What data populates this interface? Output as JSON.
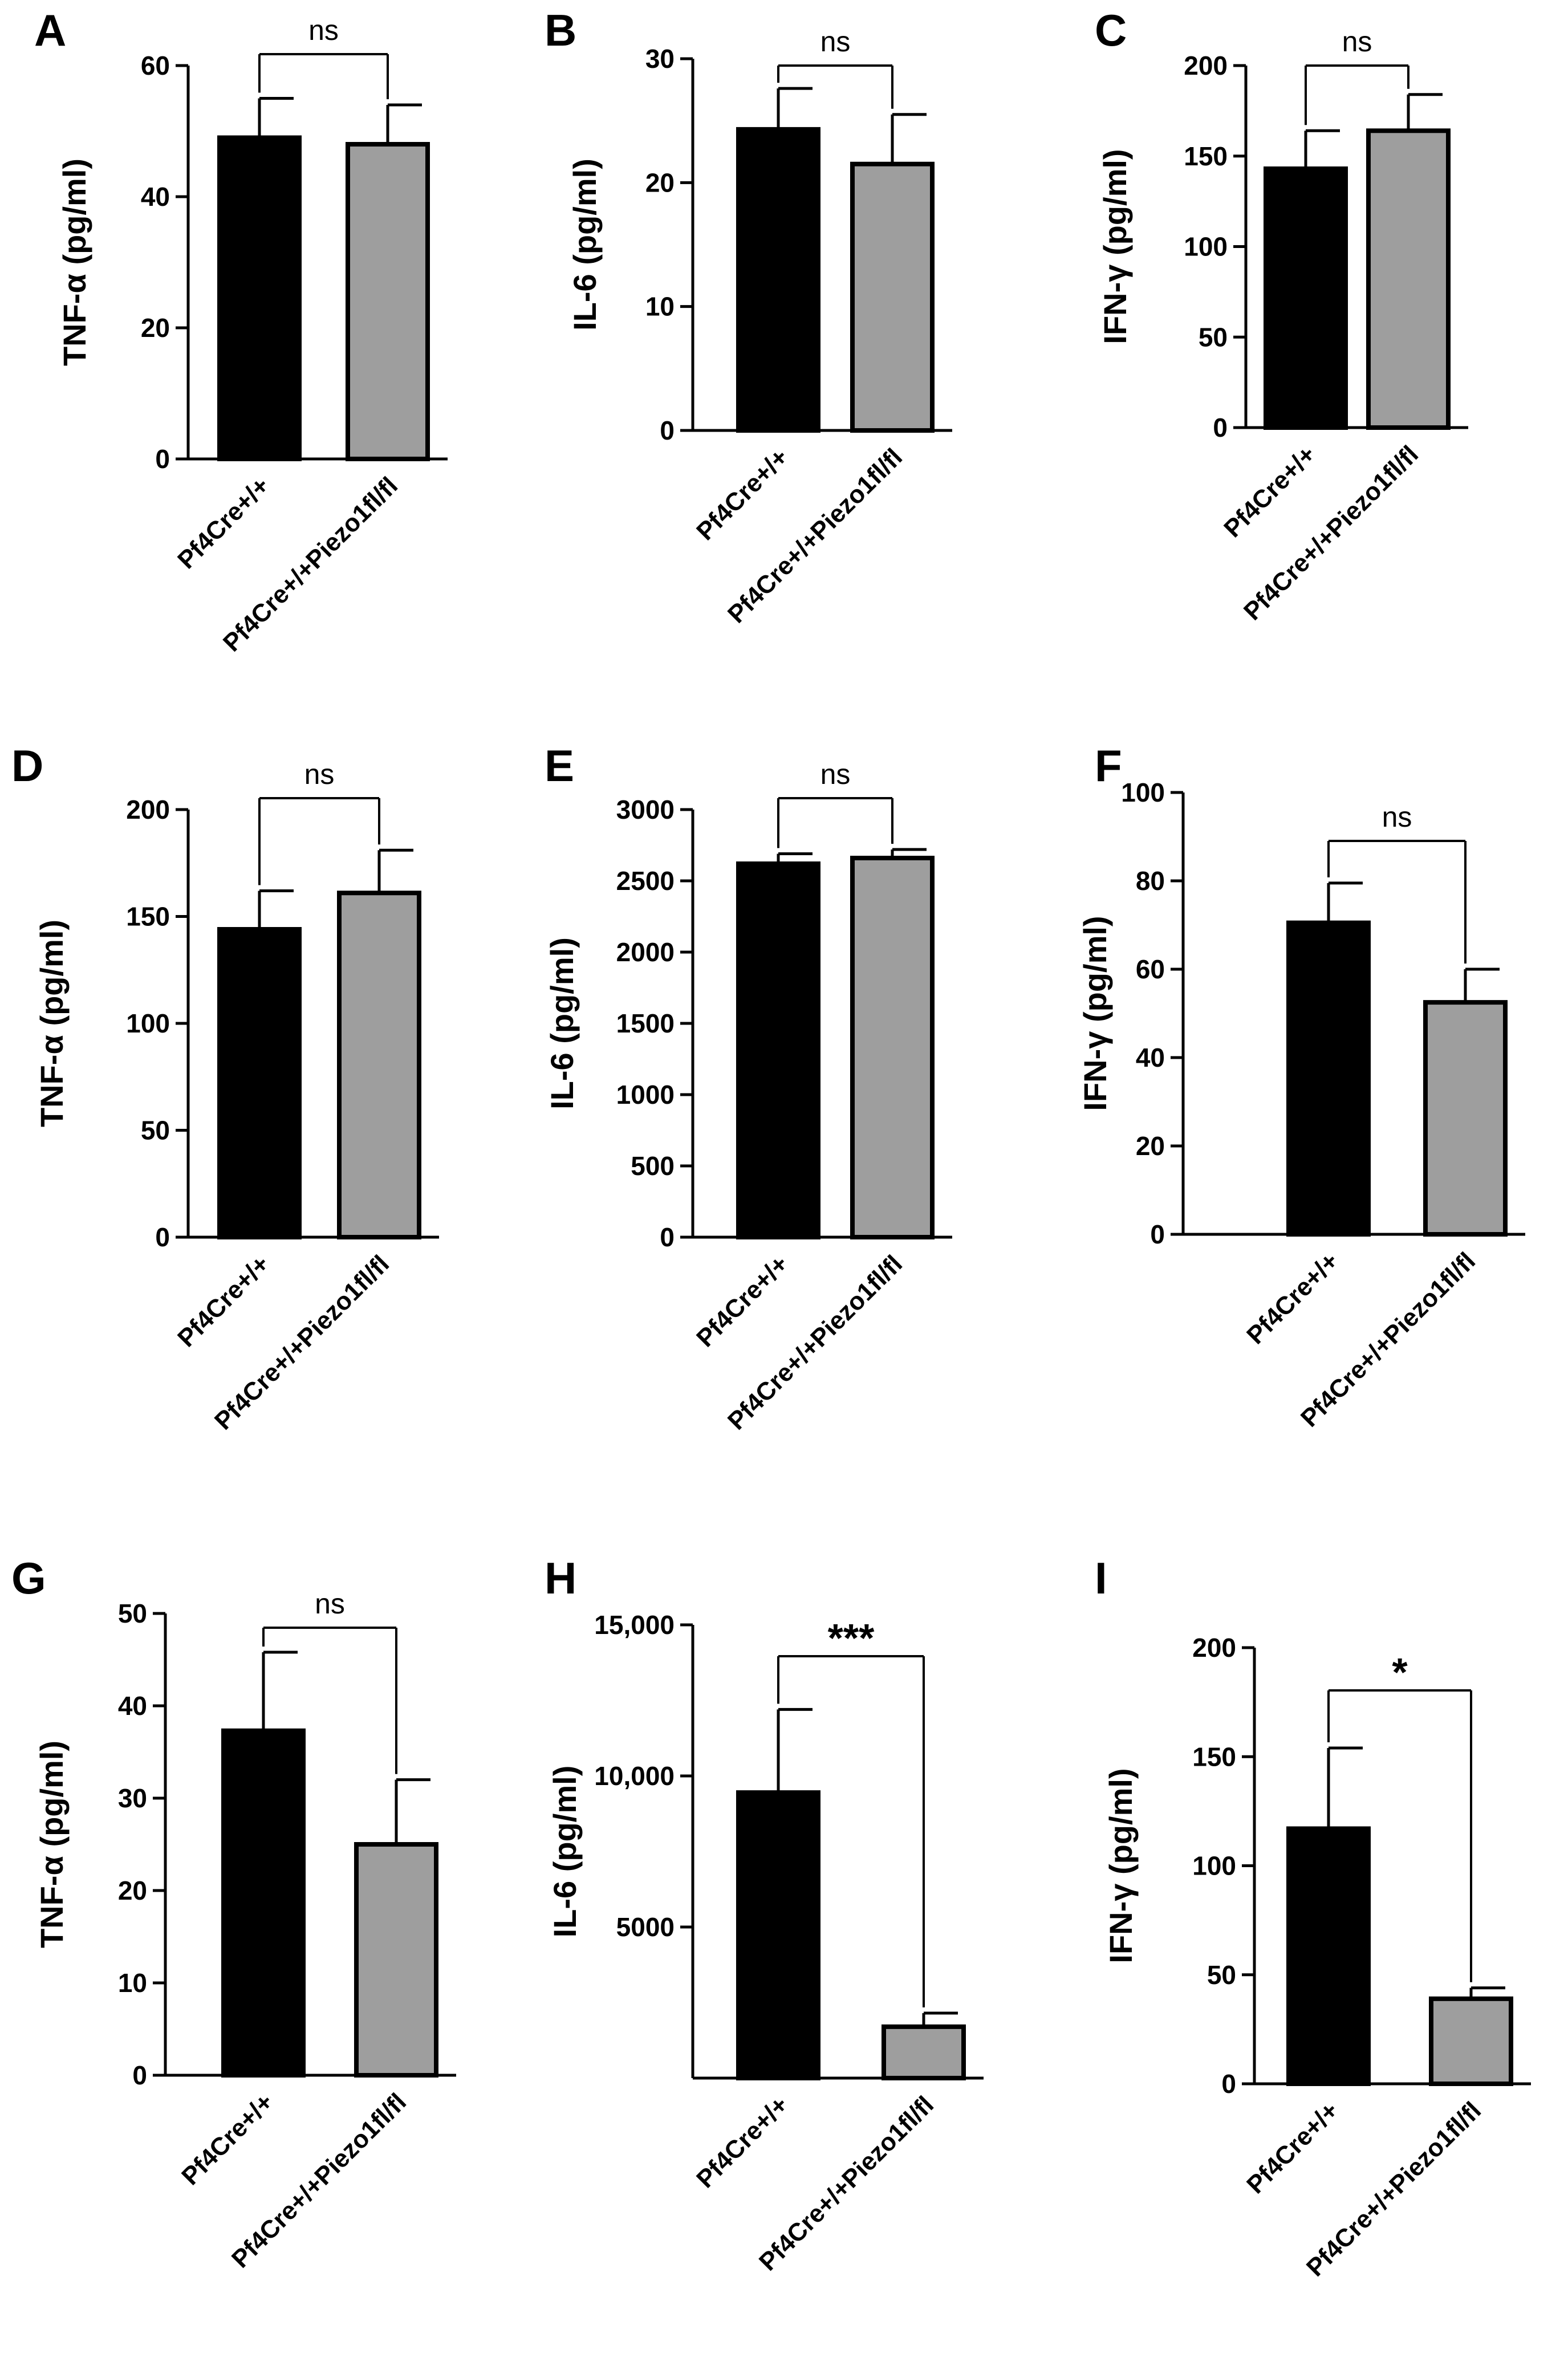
{
  "chart_data": [
    {
      "panel": "A",
      "type": "bar",
      "categories": [
        "Pf4Cre+/+",
        "Pf4Cre+/+Piezo1fl/fl"
      ],
      "values": [
        49,
        48
      ],
      "errors": [
        6,
        6
      ],
      "ylabel": "TNF-α (pg/ml)",
      "ylim": [
        0,
        60
      ],
      "yticks": [
        "0",
        "20",
        "40",
        "60"
      ],
      "yticks_v": [
        0,
        20,
        40,
        60
      ],
      "significance": "ns",
      "colors": [
        "#000000",
        "#9e9e9e"
      ]
    },
    {
      "panel": "B",
      "type": "bar",
      "categories": [
        "Pf4Cre+/+",
        "Pf4Cre+/+Piezo1fl/fl"
      ],
      "values": [
        24.3,
        21.5
      ],
      "errors": [
        3.3,
        4
      ],
      "ylabel": "IL-6  (pg/ml)",
      "ylim": [
        0,
        30
      ],
      "yticks": [
        "0",
        "10",
        "20",
        "30"
      ],
      "yticks_v": [
        0,
        10,
        20,
        30
      ],
      "significance": "ns",
      "colors": [
        "#000000",
        "#9e9e9e"
      ]
    },
    {
      "panel": "C",
      "type": "bar",
      "categories": [
        "Pf4Cre+/+",
        "Pf4Cre+/+Piezo1fl/fl"
      ],
      "values": [
        143,
        164
      ],
      "errors": [
        21,
        20
      ],
      "ylabel": "IFN-γ (pg/ml)",
      "ylim": [
        0,
        200
      ],
      "yticks": [
        "0",
        "50",
        "100",
        "150",
        "200"
      ],
      "yticks_v": [
        0,
        50,
        100,
        150,
        200
      ],
      "significance": "ns",
      "colors": [
        "#000000",
        "#9e9e9e"
      ]
    },
    {
      "panel": "D",
      "type": "bar",
      "categories": [
        "Pf4Cre+/+",
        "Pf4Cre+/+Piezo1fl/fl"
      ],
      "values": [
        144,
        161
      ],
      "errors": [
        18,
        20
      ],
      "ylabel": "TNF-α (pg/ml)",
      "ylim": [
        0,
        200
      ],
      "yticks": [
        "0",
        "50",
        "100",
        "150",
        "200"
      ],
      "yticks_v": [
        0,
        50,
        100,
        150,
        200
      ],
      "significance": "ns",
      "colors": [
        "#000000",
        "#9e9e9e"
      ]
    },
    {
      "panel": "E",
      "type": "bar",
      "categories": [
        "Pf4Cre+/+",
        "Pf4Cre+/+Piezo1fl/fl"
      ],
      "values": [
        2620,
        2660
      ],
      "errors": [
        70,
        60
      ],
      "ylabel": "IL-6 (pg/ml)",
      "ylim": [
        0,
        3000
      ],
      "yticks": [
        "0",
        "500",
        "1000",
        "1500",
        "2000",
        "2500",
        "3000"
      ],
      "yticks_v": [
        0,
        500,
        1000,
        1500,
        2000,
        2500,
        3000
      ],
      "significance": "ns",
      "colors": [
        "#000000",
        "#9e9e9e"
      ]
    },
    {
      "panel": "F",
      "type": "bar",
      "categories": [
        "Pf4Cre+/+",
        "Pf4Cre+/+Piezo1fl/fl"
      ],
      "values": [
        70.5,
        52.5
      ],
      "errors": [
        9,
        7.5
      ],
      "ylabel": "IFN-γ (pg/ml)",
      "ylim": [
        0,
        100
      ],
      "yticks": [
        "0",
        "20",
        "40",
        "60",
        "80",
        "100"
      ],
      "yticks_v": [
        0,
        20,
        40,
        60,
        80,
        100
      ],
      "significance": "ns",
      "colors": [
        "#000000",
        "#9e9e9e"
      ]
    },
    {
      "panel": "G",
      "type": "bar",
      "categories": [
        "Pf4Cre+/+",
        "Pf4Cre+/+Piezo1fl/fl"
      ],
      "values": [
        37.3,
        25
      ],
      "errors": [
        8.5,
        7
      ],
      "ylabel": "TNF-α (pg/ml)",
      "ylim": [
        0,
        50
      ],
      "yticks": [
        "0",
        "10",
        "20",
        "30",
        "40",
        "50"
      ],
      "yticks_v": [
        0,
        10,
        20,
        30,
        40,
        50
      ],
      "significance": "ns",
      "colors": [
        "#000000",
        "#9e9e9e"
      ]
    },
    {
      "panel": "H",
      "type": "bar",
      "categories": [
        "Pf4Cre+/+",
        "Pf4Cre+/+Piezo1fl/fl"
      ],
      "values": [
        9450,
        1700
      ],
      "errors": [
        2750,
        450
      ],
      "ylabel": "IL-6 (pg/ml)",
      "ylim": [
        0,
        15000
      ],
      "yticks": [
        "5000",
        "10,000",
        "15,000"
      ],
      "yticks_v": [
        5000,
        10000,
        15000
      ],
      "significance": "***",
      "colors": [
        "#000000",
        "#9e9e9e"
      ]
    },
    {
      "panel": "I",
      "type": "bar",
      "categories": [
        "Pf4Cre+/+",
        "Pf4Cre+/+Piezo1fl/fl"
      ],
      "values": [
        117,
        39
      ],
      "errors": [
        37,
        5
      ],
      "ylabel": "IFN-γ (pg/ml)",
      "ylim": [
        0,
        200
      ],
      "yticks": [
        "0",
        "50",
        "100",
        "150",
        "200"
      ],
      "yticks_v": [
        0,
        50,
        100,
        150,
        200
      ],
      "significance": "*",
      "colors": [
        "#000000",
        "#9e9e9e"
      ]
    }
  ]
}
